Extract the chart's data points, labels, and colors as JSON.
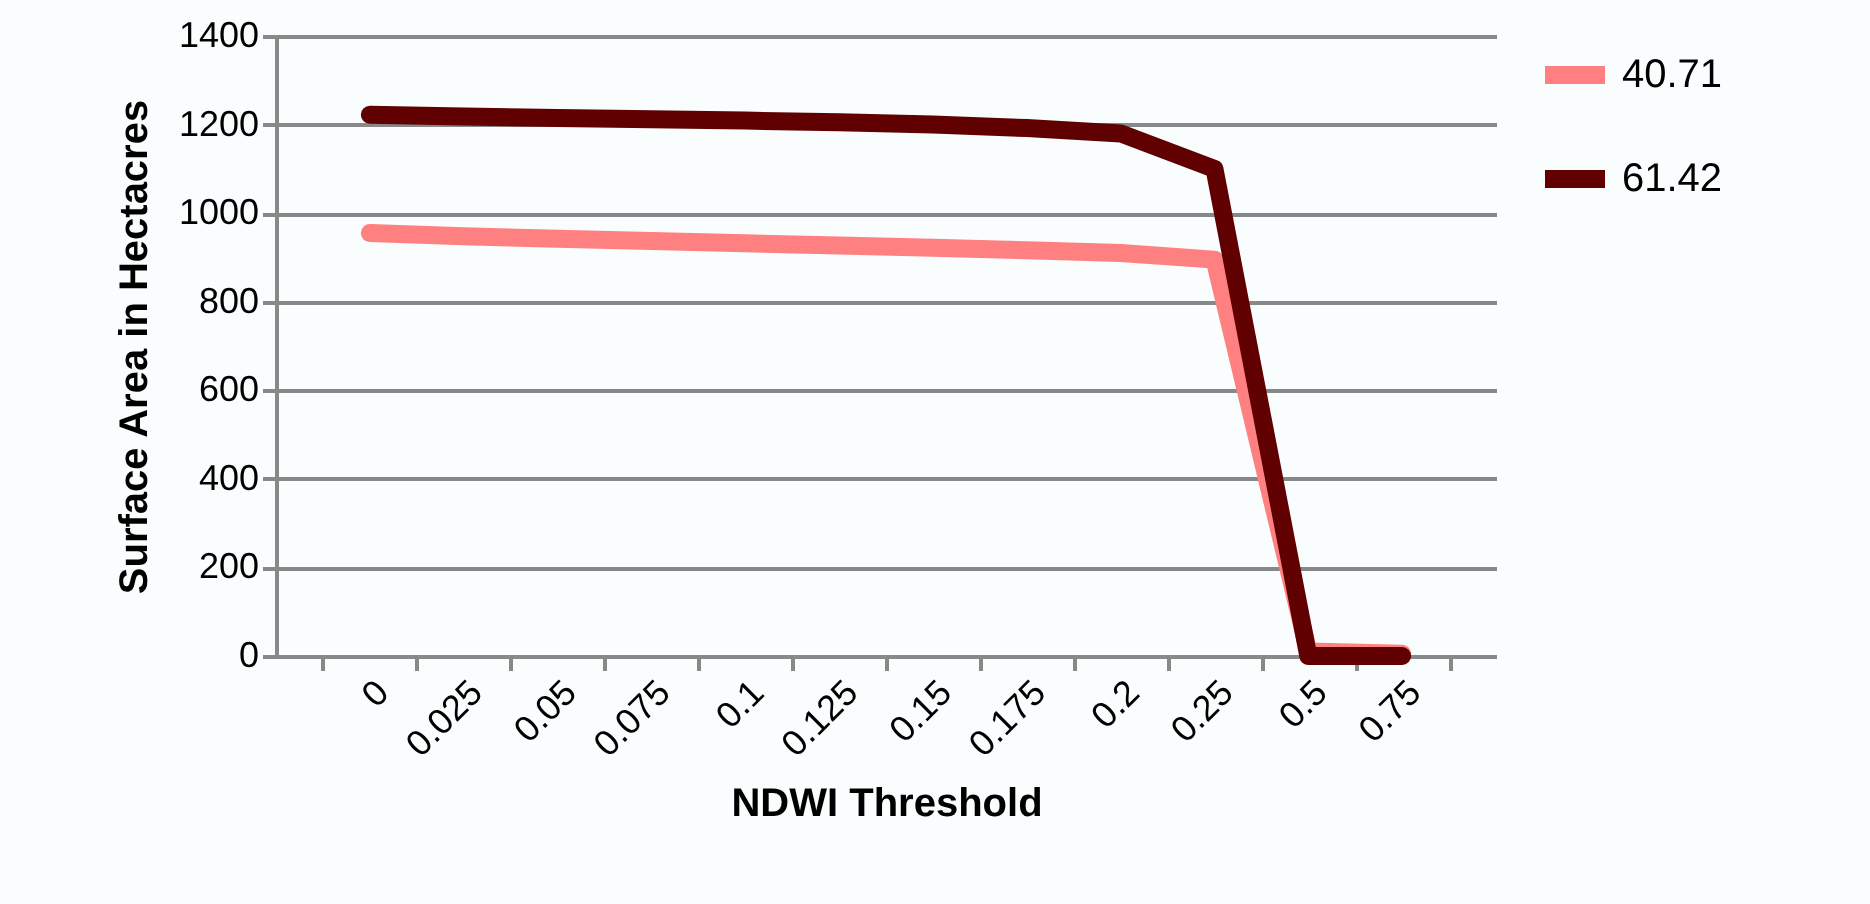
{
  "chart_data": {
    "type": "line",
    "xlabel": "NDWI Threshold",
    "ylabel": "Surface Area in Hectacres",
    "categories": [
      "0",
      "0.025",
      "0.05",
      "0.075",
      "0.1",
      "0.125",
      "0.15",
      "0.175",
      "0.2",
      "0.25",
      "0.5",
      "0.75"
    ],
    "series": [
      {
        "name": "40.71",
        "color": "#ff8080",
        "values": [
          955,
          948,
          942,
          937,
          932,
          927,
          922,
          916,
          910,
          895,
          10,
          5
        ]
      },
      {
        "name": "61.42",
        "color": "#600000",
        "values": [
          1222,
          1218,
          1215,
          1212,
          1209,
          1205,
          1200,
          1192,
          1180,
          1100,
          0,
          0
        ]
      }
    ],
    "ylim": [
      0,
      1400
    ],
    "yticks": [
      0,
      200,
      400,
      600,
      800,
      1000,
      1200,
      1400
    ],
    "grid": "y",
    "legend": "right",
    "marker": "none",
    "line_style": "solid"
  }
}
